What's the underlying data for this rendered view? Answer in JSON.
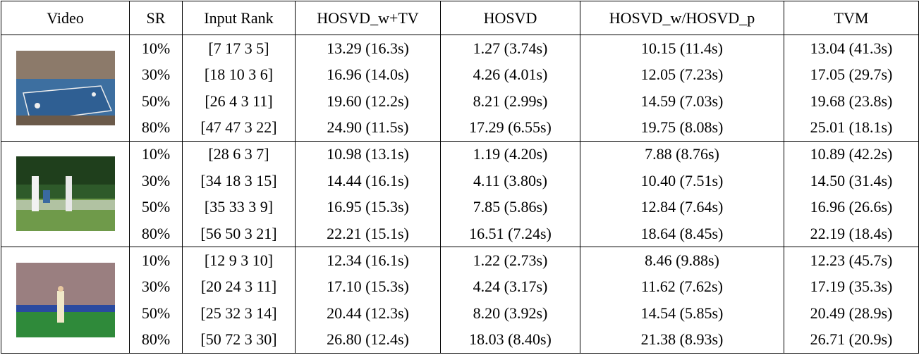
{
  "table": {
    "header": [
      "Video",
      "SR",
      "Input Rank",
      "HOSVD_w+TV",
      "HOSVD",
      "HOSVD_w/HOSVD_p",
      "TVM"
    ],
    "groups": [
      {
        "rows": [
          [
            "10%",
            "[7 17 3 5]",
            "13.29 (16.3s)",
            "1.27 (3.74s)",
            "10.15 (11.4s)",
            "13.04 (41.3s)"
          ],
          [
            "30%",
            "[18 10 3 6]",
            "16.96 (14.0s)",
            "4.26 (4.01s)",
            "12.05 (7.23s)",
            "17.05 (29.7s)"
          ],
          [
            "50%",
            "[26 4 3 11]",
            "19.60 (12.2s)",
            "8.21 (2.99s)",
            "14.59 (7.03s)",
            "19.68 (23.8s)"
          ],
          [
            "80%",
            "[47 47 3 22]",
            "24.90 (11.5s)",
            "17.29 (6.55s)",
            "19.75 (8.08s)",
            "25.01 (18.1s)"
          ]
        ]
      },
      {
        "rows": [
          [
            "10%",
            "[28 6 3 7]",
            "10.98 (13.1s)",
            "1.19 (4.20s)",
            "7.88 (8.76s)",
            "10.89 (42.2s)"
          ],
          [
            "30%",
            "[34 18 3 15]",
            "14.44 (16.1s)",
            "4.11 (3.80s)",
            "10.40 (7.51s)",
            "14.50 (31.4s)"
          ],
          [
            "50%",
            "[35 33 3 9]",
            "16.95 (15.3s)",
            "7.85 (5.86s)",
            "12.84 (7.64s)",
            "16.96 (26.6s)"
          ],
          [
            "80%",
            "[56 50 3 21]",
            "22.21 (15.1s)",
            "16.51 (7.24s)",
            "18.64 (8.45s)",
            "22.19 (18.4s)"
          ]
        ]
      },
      {
        "rows": [
          [
            "10%",
            "[12 9 3 10]",
            "12.34 (16.1s)",
            "1.22 (2.73s)",
            "8.46 (9.88s)",
            "12.23 (45.7s)"
          ],
          [
            "30%",
            "[20 24 3 11]",
            "17.10 (15.3s)",
            "4.24 (3.17s)",
            "11.62 (7.62s)",
            "17.19 (35.3s)"
          ],
          [
            "50%",
            "[25 32 3 14]",
            "20.44 (12.3s)",
            "8.20 (3.92s)",
            "14.54 (5.85s)",
            "20.49 (28.9s)"
          ],
          [
            "80%",
            "[50 72 3 30]",
            "26.80 (12.4s)",
            "18.03 (8.40s)",
            "21.38 (8.93s)",
            "26.71 (20.9s)"
          ]
        ]
      }
    ]
  }
}
